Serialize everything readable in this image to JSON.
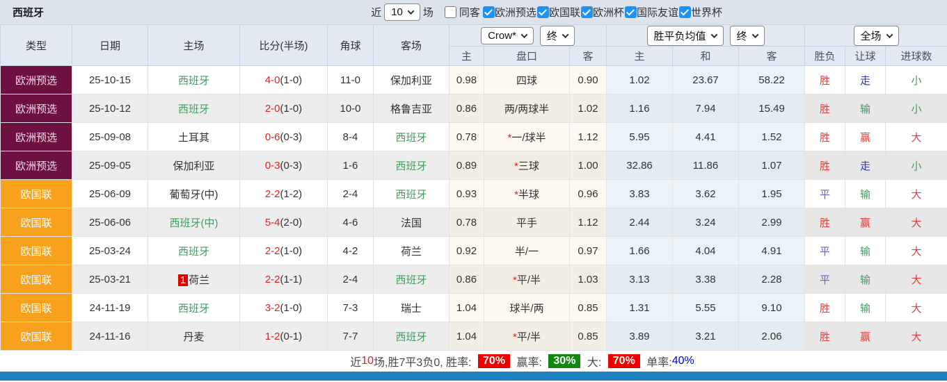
{
  "page": {
    "title": "西班牙",
    "filters": {
      "recent_label": "近",
      "matches_value": "10",
      "matches_suffix": "场",
      "same_away": {
        "label": "同客",
        "checked": false
      },
      "competitions": [
        {
          "label": "欧洲预选",
          "checked": true
        },
        {
          "label": "欧国联",
          "checked": true
        },
        {
          "label": "欧洲杯",
          "checked": true
        },
        {
          "label": "国际友谊",
          "checked": true
        },
        {
          "label": "世界杯",
          "checked": true
        }
      ]
    }
  },
  "table": {
    "headers": {
      "type": "类型",
      "date": "日期",
      "home": "主场",
      "score": "比分(半场)",
      "corner": "角球",
      "away": "客场",
      "odds_company_select": "Crow*",
      "odds_time_select": "终",
      "mean_type_select": "胜平负均值",
      "mean_time_select": "终",
      "scope_select": "全场",
      "sub": [
        "主",
        "盘口",
        "客",
        "主",
        "和",
        "客",
        "胜负",
        "让球",
        "进球数"
      ]
    },
    "star_glyph": "*",
    "rows": [
      {
        "type": "欧洲预选",
        "typeColor": "maroon",
        "date": "25-10-15",
        "home": "西班牙",
        "homeGreen": true,
        "homeBadge": null,
        "scoreFt": "4-0",
        "scoreHt": "(1-0)",
        "corner": "11-0",
        "away": "保加利亚",
        "awayGreen": false,
        "oddsHome": "0.98",
        "handicapStar": false,
        "handicap": "四球",
        "oddsAway": "0.90",
        "mean": [
          "1.02",
          "23.67",
          "58.22"
        ],
        "results": [
          {
            "text": "胜",
            "color": "red"
          },
          {
            "text": "走",
            "color": "blue"
          },
          {
            "text": "小",
            "color": "green"
          }
        ]
      },
      {
        "type": "欧洲预选",
        "typeColor": "maroon",
        "date": "25-10-12",
        "home": "西班牙",
        "homeGreen": true,
        "homeBadge": null,
        "scoreFt": "2-0",
        "scoreHt": "(1-0)",
        "corner": "10-0",
        "away": "格鲁吉亚",
        "awayGreen": false,
        "oddsHome": "0.86",
        "handicapStar": false,
        "handicap": "两/两球半",
        "oddsAway": "1.02",
        "mean": [
          "1.16",
          "7.94",
          "15.49"
        ],
        "results": [
          {
            "text": "胜",
            "color": "red"
          },
          {
            "text": "输",
            "color": "green"
          },
          {
            "text": "小",
            "color": "green"
          }
        ]
      },
      {
        "type": "欧洲预选",
        "typeColor": "maroon",
        "date": "25-09-08",
        "home": "土耳其",
        "homeGreen": false,
        "homeBadge": null,
        "scoreFt": "0-6",
        "scoreHt": "(0-3)",
        "corner": "8-4",
        "away": "西班牙",
        "awayGreen": true,
        "oddsHome": "0.78",
        "handicapStar": true,
        "handicap": "一/球半",
        "oddsAway": "1.12",
        "mean": [
          "5.95",
          "4.41",
          "1.52"
        ],
        "results": [
          {
            "text": "胜",
            "color": "red"
          },
          {
            "text": "赢",
            "color": "red"
          },
          {
            "text": "大",
            "color": "red"
          }
        ]
      },
      {
        "type": "欧洲预选",
        "typeColor": "maroon",
        "date": "25-09-05",
        "home": "保加利亚",
        "homeGreen": false,
        "homeBadge": null,
        "scoreFt": "0-3",
        "scoreHt": "(0-3)",
        "corner": "1-6",
        "away": "西班牙",
        "awayGreen": true,
        "oddsHome": "0.89",
        "handicapStar": true,
        "handicap": "三球",
        "oddsAway": "1.00",
        "mean": [
          "32.86",
          "11.86",
          "1.07"
        ],
        "results": [
          {
            "text": "胜",
            "color": "red"
          },
          {
            "text": "走",
            "color": "blue"
          },
          {
            "text": "小",
            "color": "green"
          }
        ]
      },
      {
        "type": "欧国联",
        "typeColor": "orange",
        "date": "25-06-09",
        "home": "葡萄牙(中)",
        "homeGreen": false,
        "homeBadge": null,
        "scoreFt": "2-2",
        "scoreHt": "(1-2)",
        "corner": "2-4",
        "away": "西班牙",
        "awayGreen": true,
        "oddsHome": "0.93",
        "handicapStar": true,
        "handicap": "半球",
        "oddsAway": "0.96",
        "mean": [
          "3.83",
          "3.62",
          "1.95"
        ],
        "results": [
          {
            "text": "平",
            "color": "purple"
          },
          {
            "text": "输",
            "color": "green"
          },
          {
            "text": "大",
            "color": "red"
          }
        ]
      },
      {
        "type": "欧国联",
        "typeColor": "orange",
        "date": "25-06-06",
        "home": "西班牙(中)",
        "homeGreen": true,
        "homeBadge": null,
        "scoreFt": "5-4",
        "scoreHt": "(2-0)",
        "corner": "4-6",
        "away": "法国",
        "awayGreen": false,
        "oddsHome": "0.78",
        "handicapStar": false,
        "handicap": "平手",
        "oddsAway": "1.12",
        "mean": [
          "2.44",
          "3.24",
          "2.99"
        ],
        "results": [
          {
            "text": "胜",
            "color": "red"
          },
          {
            "text": "赢",
            "color": "red"
          },
          {
            "text": "大",
            "color": "red"
          }
        ]
      },
      {
        "type": "欧国联",
        "typeColor": "orange",
        "date": "25-03-24",
        "home": "西班牙",
        "homeGreen": true,
        "homeBadge": null,
        "scoreFt": "2-2",
        "scoreHt": "(1-0)",
        "corner": "4-2",
        "away": "荷兰",
        "awayGreen": false,
        "oddsHome": "0.92",
        "handicapStar": false,
        "handicap": "半/一",
        "oddsAway": "0.97",
        "mean": [
          "1.66",
          "4.04",
          "4.91"
        ],
        "results": [
          {
            "text": "平",
            "color": "purple"
          },
          {
            "text": "输",
            "color": "green"
          },
          {
            "text": "大",
            "color": "red"
          }
        ]
      },
      {
        "type": "欧国联",
        "typeColor": "orange",
        "date": "25-03-21",
        "home": "荷兰",
        "homeGreen": false,
        "homeBadge": "1",
        "scoreFt": "2-2",
        "scoreHt": "(1-1)",
        "corner": "2-4",
        "away": "西班牙",
        "awayGreen": true,
        "oddsHome": "0.86",
        "handicapStar": true,
        "handicap": "平/半",
        "oddsAway": "1.03",
        "mean": [
          "3.13",
          "3.38",
          "2.28"
        ],
        "results": [
          {
            "text": "平",
            "color": "purple"
          },
          {
            "text": "输",
            "color": "green"
          },
          {
            "text": "大",
            "color": "red"
          }
        ]
      },
      {
        "type": "欧国联",
        "typeColor": "orange",
        "date": "24-11-19",
        "home": "西班牙",
        "homeGreen": true,
        "homeBadge": null,
        "scoreFt": "3-2",
        "scoreHt": "(1-0)",
        "corner": "7-3",
        "away": "瑞士",
        "awayGreen": false,
        "oddsHome": "1.04",
        "handicapStar": false,
        "handicap": "球半/两",
        "oddsAway": "0.85",
        "mean": [
          "1.31",
          "5.55",
          "9.10"
        ],
        "results": [
          {
            "text": "胜",
            "color": "red"
          },
          {
            "text": "输",
            "color": "green"
          },
          {
            "text": "大",
            "color": "red"
          }
        ]
      },
      {
        "type": "欧国联",
        "typeColor": "orange",
        "date": "24-11-16",
        "home": "丹麦",
        "homeGreen": false,
        "homeBadge": null,
        "scoreFt": "1-2",
        "scoreHt": "(0-1)",
        "corner": "7-7",
        "away": "西班牙",
        "awayGreen": true,
        "oddsHome": "1.04",
        "handicapStar": true,
        "handicap": "平/半",
        "oddsAway": "0.85",
        "mean": [
          "3.89",
          "3.21",
          "2.06"
        ],
        "results": [
          {
            "text": "胜",
            "color": "red"
          },
          {
            "text": "赢",
            "color": "red"
          },
          {
            "text": "大",
            "color": "red"
          }
        ]
      }
    ]
  },
  "summary": {
    "segments": [
      {
        "kind": "text",
        "text": "近"
      },
      {
        "kind": "text",
        "text": "10",
        "color": "red"
      },
      {
        "kind": "text",
        "text": "场,胜7平3负0, 胜率: "
      },
      {
        "kind": "badge",
        "text": "70%",
        "color": "red"
      },
      {
        "kind": "text",
        "text": " 赢率: "
      },
      {
        "kind": "badge",
        "text": "30%",
        "color": "green"
      },
      {
        "kind": "text",
        "text": " 大: "
      },
      {
        "kind": "badge",
        "text": "70%",
        "color": "red"
      },
      {
        "kind": "text",
        "text": " 单率:"
      },
      {
        "kind": "text",
        "text": "40%",
        "color": "blue"
      }
    ]
  },
  "colors": {
    "type_maroon": "#6d1140",
    "type_orange": "#f8a11d",
    "team_green": "#3f9e5d",
    "score_red": "#e02020",
    "result_red": "#e43b3b",
    "result_green": "#3f9e5d",
    "result_blue": "#2e2ecc",
    "result_purple": "#6a5fd0",
    "badge_red": "#ee0000",
    "badge_green": "#0f880f",
    "rate_blue": "#0000dd",
    "checkbox_blue": "#1f93f3",
    "bottom_bar_blue": "#1e81c2",
    "topbar_bg": "#dde3ec",
    "header_bg": "#e3e9f3"
  }
}
